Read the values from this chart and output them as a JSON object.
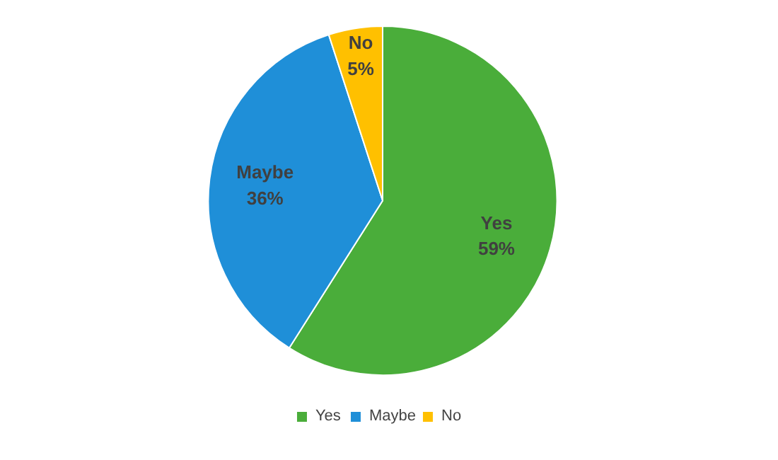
{
  "chart_data": {
    "type": "pie",
    "categories": [
      "Yes",
      "Maybe",
      "No"
    ],
    "values": [
      59,
      36,
      5
    ],
    "colors": [
      "#4aad3a",
      "#1f8fd8",
      "#ffc000"
    ],
    "value_labels": [
      "59%",
      "36%",
      "5%"
    ],
    "legend": "bottom"
  }
}
